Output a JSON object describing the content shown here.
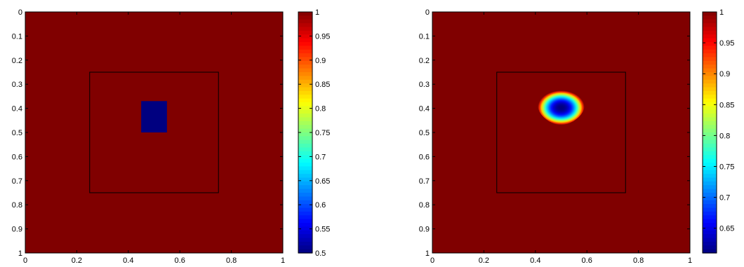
{
  "chart_data": [
    {
      "type": "heatmap",
      "title": "",
      "xlabel": "",
      "ylabel": "",
      "xlim": [
        0,
        1
      ],
      "ylim": [
        0,
        1
      ],
      "y_reversed": true,
      "colormap": "jet",
      "background_value": 1,
      "x_ticks": [
        "0",
        "0.2",
        "0.4",
        "0.6",
        "0.8",
        "1"
      ],
      "y_ticks": [
        "0",
        "0.1",
        "0.2",
        "0.3",
        "0.4",
        "0.5",
        "0.6",
        "0.7",
        "0.8",
        "0.9",
        "1"
      ],
      "inner_box": {
        "x": [
          0.25,
          0.75
        ],
        "y": [
          0.25,
          0.75
        ]
      },
      "features": [
        {
          "shape": "rectangle",
          "x": [
            0.45,
            0.55
          ],
          "y": [
            0.37,
            0.5
          ],
          "value": 0.5
        }
      ],
      "colorbar": {
        "range": [
          0.5,
          1
        ],
        "ticks": [
          "0.5",
          "0.55",
          "0.6",
          "0.65",
          "0.7",
          "0.75",
          "0.8",
          "0.85",
          "0.9",
          "0.95",
          "1"
        ]
      }
    },
    {
      "type": "heatmap",
      "title": "",
      "xlabel": "",
      "ylabel": "",
      "xlim": [
        0,
        1
      ],
      "ylim": [
        0,
        1
      ],
      "y_reversed": true,
      "colormap": "jet",
      "background_value": 1,
      "x_ticks": [
        "0",
        "0.2",
        "0.4",
        "0.6",
        "0.8",
        "1"
      ],
      "y_ticks": [
        "0",
        "0.1",
        "0.2",
        "0.3",
        "0.4",
        "0.5",
        "0.6",
        "0.7",
        "0.8",
        "0.9",
        "1"
      ],
      "inner_box": {
        "x": [
          0.25,
          0.75
        ],
        "y": [
          0.25,
          0.75
        ]
      },
      "features": [
        {
          "shape": "blob",
          "center": [
            0.5,
            0.39
          ],
          "radius": [
            0.085,
            0.075
          ],
          "min_value": 0.61
        }
      ],
      "colorbar": {
        "range": [
          0.61,
          1
        ],
        "ticks": [
          "0.65",
          "0.7",
          "0.75",
          "0.8",
          "0.85",
          "0.9",
          "0.95",
          "1"
        ]
      }
    }
  ]
}
